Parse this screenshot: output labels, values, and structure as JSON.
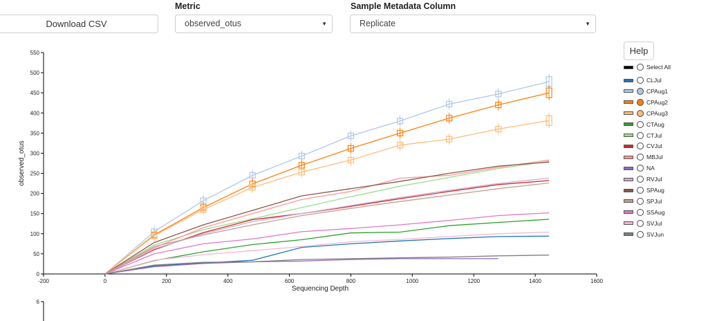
{
  "toolbar": {
    "download_label": "Download CSV",
    "metric_label": "Metric",
    "metric_value": "observed_otus",
    "metadata_label": "Sample Metadata Column",
    "metadata_value": "Replicate",
    "caret_glyph": "▼"
  },
  "help_label": "Help",
  "legend": {
    "select_all": "Select All",
    "items": [
      {
        "name": "CLJul",
        "color": "#1f77b4",
        "checked": false
      },
      {
        "name": "CPAug1",
        "color": "#aec7e8",
        "checked": true
      },
      {
        "name": "CPAug2",
        "color": "#ff7f0e",
        "checked": true
      },
      {
        "name": "CPAug3",
        "color": "#ffbb78",
        "checked": true
      },
      {
        "name": "CTAug",
        "color": "#2ca02c",
        "checked": false
      },
      {
        "name": "CTJul",
        "color": "#98df8a",
        "checked": false
      },
      {
        "name": "CVJul",
        "color": "#d62728",
        "checked": false
      },
      {
        "name": "MBJul",
        "color": "#ff9896",
        "checked": false
      },
      {
        "name": "NA",
        "color": "#9467bd",
        "checked": false
      },
      {
        "name": "RVJul",
        "color": "#c5b0d5",
        "checked": false
      },
      {
        "name": "SPAug",
        "color": "#8c564b",
        "checked": false
      },
      {
        "name": "SPJul",
        "color": "#c49c94",
        "checked": false
      },
      {
        "name": "SSAug",
        "color": "#e377c2",
        "checked": false
      },
      {
        "name": "SVJul",
        "color": "#f7b6d2",
        "checked": false
      },
      {
        "name": "SVJun",
        "color": "#7f7f7f",
        "checked": false
      }
    ]
  },
  "chart_data": {
    "type": "line",
    "xlabel": "Sequencing Depth",
    "ylabel": "observed_otus",
    "xlim": [
      -200,
      1600
    ],
    "ylim": [
      0,
      550
    ],
    "xticks": [
      -200,
      0,
      200,
      400,
      600,
      800,
      1000,
      1200,
      1400,
      1600
    ],
    "yticks": [
      0,
      50,
      100,
      150,
      200,
      250,
      300,
      350,
      400,
      450,
      500,
      550
    ],
    "next_axis_top_tick": "6",
    "x": [
      0,
      160,
      320,
      480,
      640,
      800,
      960,
      1120,
      1280,
      1445
    ],
    "series": [
      {
        "name": "CLJul",
        "color": "#1f77b4",
        "values": [
          0,
          20,
          27,
          34,
          66,
          75,
          82,
          88,
          93,
          94
        ]
      },
      {
        "name": "CPAug1",
        "color": "#aec7e8",
        "values": [
          0,
          105,
          182,
          245,
          293,
          343,
          380,
          422,
          447,
          478
        ],
        "boxes": true
      },
      {
        "name": "CPAug2",
        "color": "#ff7f0e",
        "values": [
          0,
          97,
          165,
          224,
          270,
          312,
          350,
          387,
          420,
          450
        ],
        "boxes": true
      },
      {
        "name": "CPAug3",
        "color": "#ffbb78",
        "values": [
          0,
          95,
          160,
          215,
          253,
          283,
          320,
          335,
          360,
          381
        ],
        "boxes": true
      },
      {
        "name": "CTAug",
        "color": "#2ca02c",
        "values": [
          0,
          33,
          55,
          73,
          85,
          102,
          104,
          120,
          128,
          136
        ]
      },
      {
        "name": "CTJul",
        "color": "#98df8a",
        "values": [
          0,
          72,
          110,
          137,
          165,
          192,
          218,
          240,
          262,
          280
        ]
      },
      {
        "name": "CVJul",
        "color": "#d62728",
        "values": [
          0,
          60,
          103,
          135,
          150,
          168,
          187,
          205,
          222,
          232
        ]
      },
      {
        "name": "MBJul",
        "color": "#ff9896",
        "values": [
          0,
          65,
          115,
          150,
          185,
          205,
          238,
          245,
          265,
          283
        ]
      },
      {
        "name": "NA",
        "color": "#9467bd",
        "values": [
          0,
          18,
          26,
          30,
          32,
          36,
          38,
          38,
          38,
          null
        ]
      },
      {
        "name": "RVJul",
        "color": "#c5b0d5",
        "values": [
          0,
          62,
          100,
          130,
          150,
          170,
          190,
          208,
          225,
          238
        ]
      },
      {
        "name": "SPAug",
        "color": "#8c564b",
        "values": [
          0,
          78,
          122,
          158,
          194,
          212,
          230,
          250,
          268,
          278
        ]
      },
      {
        "name": "SPJul",
        "color": "#c49c94",
        "values": [
          0,
          68,
          97,
          122,
          145,
          163,
          180,
          196,
          212,
          226
        ]
      },
      {
        "name": "SSAug",
        "color": "#e377c2",
        "values": [
          0,
          50,
          75,
          87,
          105,
          113,
          122,
          133,
          145,
          152
        ]
      },
      {
        "name": "SVJul",
        "color": "#f7b6d2",
        "values": [
          0,
          34,
          48,
          58,
          68,
          80,
          86,
          93,
          100,
          104
        ]
      },
      {
        "name": "SVJun",
        "color": "#7f7f7f",
        "values": [
          0,
          22,
          29,
          30,
          36,
          38,
          40,
          42,
          45,
          47
        ]
      }
    ]
  }
}
